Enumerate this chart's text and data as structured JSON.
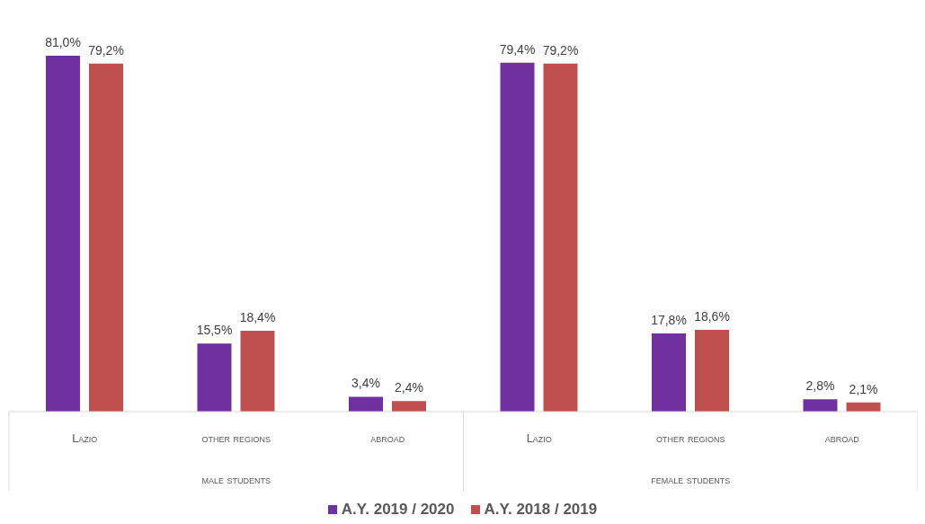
{
  "chart_data": {
    "type": "bar",
    "categories": [
      "Lazio",
      "other regions",
      "abroad",
      "Lazio",
      "other regions",
      "abroad"
    ],
    "annotations": [
      "male students",
      "female students"
    ],
    "series": [
      {
        "name": "A.Y. 2019 / 2020",
        "color": "#7030a0",
        "values": [
          81.0,
          15.5,
          3.4,
          79.4,
          17.8,
          2.8
        ],
        "value_labels": [
          "81,0%",
          "15,5%",
          "3,4%",
          "79,4%",
          "17,8%",
          "2,8%"
        ]
      },
      {
        "name": "A.Y. 2018 / 2019",
        "color": "#c0504d",
        "values": [
          79.2,
          18.4,
          2.4,
          79.2,
          18.6,
          2.1
        ],
        "value_labels": [
          "79,2%",
          "18,4%",
          "2,4%",
          "79,2%",
          "18,6%",
          "2,1%"
        ]
      }
    ],
    "grid": false,
    "legend": "bottom"
  }
}
